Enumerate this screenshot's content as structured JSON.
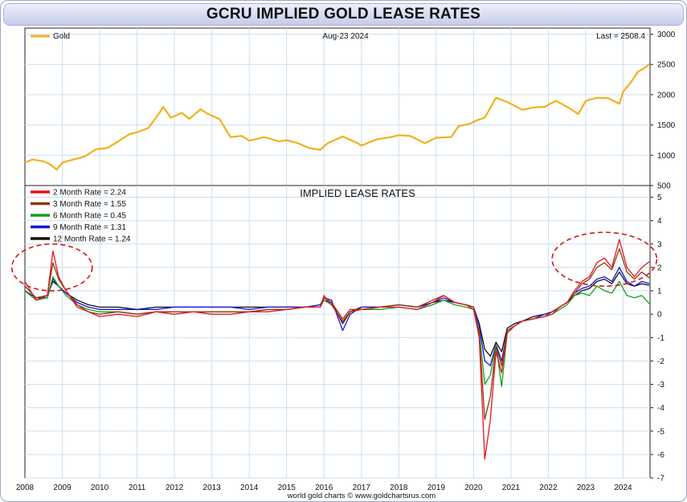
{
  "page": {
    "title": "GCRU IMPLIED GOLD LEASE RATES",
    "source": "world gold charts © www.goldchartsrus.com"
  },
  "chart_data": [
    {
      "type": "line",
      "panel": "top",
      "header_date": "Aug-23  2024",
      "last_label": "Last = 2508.4",
      "ylim": [
        500,
        3100
      ],
      "yticks": [
        500,
        1000,
        1500,
        2000,
        2500,
        3000
      ],
      "xlim": [
        2008.0,
        2024.72
      ],
      "series": [
        {
          "name": "Gold",
          "color": "#f2b01e",
          "x": [
            2008.0,
            2008.2,
            2008.5,
            2008.7,
            2008.85,
            2009.0,
            2009.3,
            2009.6,
            2009.9,
            2010.2,
            2010.5,
            2010.8,
            2011.0,
            2011.3,
            2011.6,
            2011.7,
            2011.9,
            2012.2,
            2012.4,
            2012.7,
            2012.9,
            2013.2,
            2013.5,
            2013.8,
            2014.0,
            2014.4,
            2014.8,
            2015.0,
            2015.3,
            2015.6,
            2015.9,
            2016.1,
            2016.5,
            2016.9,
            2017.0,
            2017.4,
            2017.7,
            2018.0,
            2018.3,
            2018.7,
            2019.0,
            2019.4,
            2019.6,
            2019.9,
            2020.1,
            2020.3,
            2020.6,
            2020.9,
            2021.0,
            2021.3,
            2021.6,
            2021.9,
            2022.2,
            2022.5,
            2022.8,
            2023.0,
            2023.3,
            2023.6,
            2023.9,
            2024.0,
            2024.2,
            2024.4,
            2024.6,
            2024.7
          ],
          "values": [
            880,
            930,
            900,
            840,
            760,
            880,
            930,
            980,
            1100,
            1120,
            1230,
            1350,
            1380,
            1450,
            1700,
            1800,
            1620,
            1700,
            1600,
            1760,
            1680,
            1600,
            1300,
            1320,
            1240,
            1300,
            1230,
            1250,
            1200,
            1120,
            1090,
            1200,
            1310,
            1200,
            1160,
            1260,
            1290,
            1330,
            1320,
            1200,
            1290,
            1300,
            1480,
            1520,
            1580,
            1620,
            1950,
            1880,
            1850,
            1750,
            1790,
            1800,
            1900,
            1800,
            1680,
            1900,
            1950,
            1940,
            1850,
            2050,
            2200,
            2380,
            2450,
            2508
          ]
        }
      ]
    },
    {
      "type": "line",
      "panel": "bottom",
      "title": "IMPLIED LEASE RATES",
      "ylim": [
        -7,
        5.5
      ],
      "yticks": [
        -7,
        -6,
        -5,
        -4,
        -3,
        -2,
        -1,
        0,
        1,
        2,
        3,
        4,
        5
      ],
      "xlim": [
        2008.0,
        2024.72
      ],
      "x_tick_labels": [
        "2008",
        "2009",
        "2010",
        "2011",
        "2012",
        "2013",
        "2014",
        "2015",
        "2016",
        "2017",
        "2018",
        "2019",
        "2020",
        "2021",
        "2022",
        "2023",
        "2024"
      ],
      "x": [
        2008.0,
        2008.3,
        2008.6,
        2008.75,
        2008.9,
        2009.1,
        2009.4,
        2009.7,
        2010.0,
        2010.5,
        2011.0,
        2011.5,
        2012.0,
        2012.5,
        2013.0,
        2013.5,
        2014.0,
        2014.5,
        2015.0,
        2015.5,
        2015.9,
        2016.0,
        2016.2,
        2016.5,
        2016.7,
        2017.0,
        2017.5,
        2018.0,
        2018.5,
        2018.9,
        2019.2,
        2019.5,
        2019.8,
        2020.0,
        2020.15,
        2020.3,
        2020.45,
        2020.6,
        2020.75,
        2020.9,
        2021.1,
        2021.3,
        2021.6,
        2021.9,
        2022.1,
        2022.3,
        2022.5,
        2022.7,
        2022.9,
        2023.1,
        2023.3,
        2023.5,
        2023.7,
        2023.9,
        2024.1,
        2024.3,
        2024.5,
        2024.7
      ],
      "series": [
        {
          "name": "2 Month Rate",
          "legend": "2 Month Rate  = 2.24",
          "color": "#e8141c",
          "values": [
            1.4,
            0.6,
            0.8,
            2.7,
            1.6,
            1.0,
            0.3,
            0.1,
            -0.1,
            0.0,
            -0.1,
            0.1,
            0.0,
            0.1,
            0.0,
            0.0,
            0.1,
            0.1,
            0.2,
            0.3,
            0.3,
            0.8,
            0.4,
            -0.3,
            0.1,
            0.2,
            0.3,
            0.3,
            0.2,
            0.5,
            0.8,
            0.5,
            0.4,
            0.2,
            -1.0,
            -6.2,
            -4.5,
            -1.6,
            -2.5,
            -0.8,
            -0.5,
            -0.3,
            -0.2,
            -0.1,
            0.0,
            0.3,
            0.5,
            1.0,
            1.4,
            1.6,
            2.2,
            2.4,
            2.0,
            3.2,
            2.0,
            1.6,
            2.0,
            2.24
          ]
        },
        {
          "name": "3 Month Rate",
          "legend": "3 Month Rate  = 1.55",
          "color": "#8b3b12",
          "values": [
            1.2,
            0.7,
            0.8,
            2.2,
            1.5,
            1.0,
            0.4,
            0.1,
            0.0,
            0.1,
            0.0,
            0.1,
            0.1,
            0.1,
            0.1,
            0.1,
            0.1,
            0.2,
            0.2,
            0.3,
            0.3,
            0.7,
            0.5,
            -0.2,
            0.2,
            0.2,
            0.3,
            0.4,
            0.3,
            0.6,
            0.8,
            0.5,
            0.4,
            0.3,
            -0.8,
            -4.5,
            -3.5,
            -1.4,
            -2.2,
            -0.7,
            -0.5,
            -0.3,
            -0.2,
            -0.1,
            0.1,
            0.3,
            0.5,
            0.9,
            1.3,
            1.5,
            2.0,
            2.2,
            1.9,
            2.8,
            1.8,
            1.5,
            1.8,
            1.55
          ]
        },
        {
          "name": "6 Month Rate",
          "legend": "6 Month Rate  = 0.45",
          "color": "#16a01c",
          "values": [
            1.0,
            0.6,
            0.7,
            1.6,
            1.2,
            0.8,
            0.4,
            0.2,
            0.1,
            0.1,
            0.0,
            0.1,
            0.1,
            0.1,
            0.1,
            0.1,
            0.1,
            0.2,
            0.2,
            0.3,
            0.3,
            0.6,
            0.4,
            -0.3,
            0.1,
            0.2,
            0.2,
            0.3,
            0.2,
            0.4,
            0.6,
            0.4,
            0.3,
            0.2,
            -0.7,
            -3.0,
            -2.6,
            -1.3,
            -3.1,
            -0.8,
            -0.5,
            -0.3,
            -0.2,
            -0.1,
            0.0,
            0.2,
            0.4,
            0.8,
            0.9,
            0.8,
            1.2,
            1.0,
            0.9,
            1.4,
            0.8,
            0.7,
            0.8,
            0.45
          ]
        },
        {
          "name": "9 Month Rate",
          "legend": "9 Month Rate  = 1.31",
          "color": "#1515e0",
          "values": [
            1.0,
            0.7,
            0.7,
            1.5,
            1.2,
            0.9,
            0.5,
            0.3,
            0.2,
            0.2,
            0.2,
            0.2,
            0.3,
            0.3,
            0.3,
            0.3,
            0.2,
            0.3,
            0.3,
            0.3,
            0.4,
            0.7,
            0.6,
            -0.7,
            0.0,
            0.3,
            0.3,
            0.4,
            0.3,
            0.5,
            0.7,
            0.5,
            0.4,
            0.3,
            -0.5,
            -2.0,
            -2.2,
            -1.3,
            -2.0,
            -0.7,
            -0.5,
            -0.3,
            -0.2,
            0.0,
            0.1,
            0.3,
            0.5,
            0.9,
            1.1,
            1.2,
            1.5,
            1.6,
            1.4,
            2.0,
            1.4,
            1.2,
            1.4,
            1.31
          ]
        },
        {
          "name": "12 Month Rate",
          "legend": "12 Month Rate  = 1.24",
          "color": "#111111",
          "values": [
            1.0,
            0.7,
            0.8,
            1.4,
            1.2,
            0.9,
            0.6,
            0.4,
            0.3,
            0.3,
            0.2,
            0.3,
            0.3,
            0.3,
            0.3,
            0.3,
            0.3,
            0.3,
            0.3,
            0.3,
            0.4,
            0.6,
            0.5,
            -0.4,
            0.1,
            0.3,
            0.3,
            0.4,
            0.3,
            0.5,
            0.6,
            0.5,
            0.4,
            0.3,
            -0.4,
            -1.5,
            -1.8,
            -1.2,
            -1.6,
            -0.6,
            -0.4,
            -0.3,
            -0.1,
            0.0,
            0.1,
            0.3,
            0.5,
            0.8,
            1.0,
            1.1,
            1.4,
            1.5,
            1.3,
            1.8,
            1.3,
            1.2,
            1.3,
            1.24
          ]
        }
      ],
      "annotations": [
        {
          "type": "dashed-ellipse",
          "color": "#d81414",
          "x_range": [
            2007.65,
            2009.8
          ],
          "y_range": [
            1.0,
            3.0
          ]
        },
        {
          "type": "dashed-ellipse",
          "color": "#d81414",
          "x_range": [
            2022.1,
            2024.9
          ],
          "y_range": [
            1.2,
            3.5
          ]
        }
      ]
    }
  ]
}
